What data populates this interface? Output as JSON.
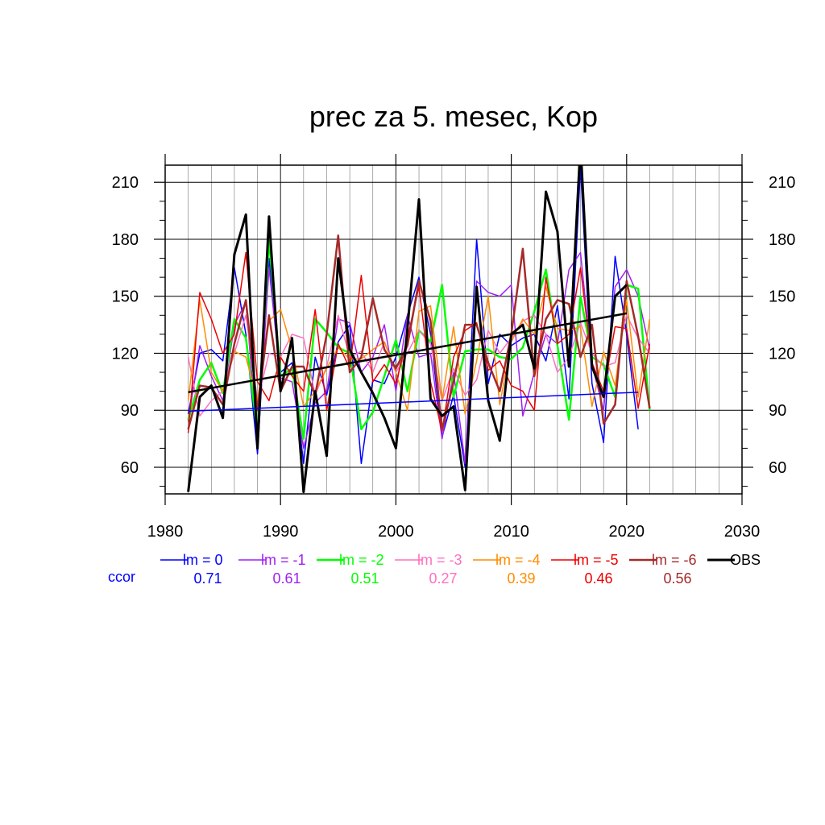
{
  "chart_data": {
    "type": "line",
    "title": "prec za 5. mesec, Kop",
    "xlabel": "",
    "ylabel": "",
    "xlim": [
      1980,
      2030
    ],
    "ylim": [
      46,
      219
    ],
    "x_ticks": [
      1980,
      1990,
      2000,
      2010,
      2020,
      2030
    ],
    "y_ticks": [
      60,
      90,
      120,
      150,
      180,
      210
    ],
    "grid": true,
    "legend_position": "bottom",
    "ccor_label": "ccor",
    "ccor_color": "#0000ff",
    "series": [
      {
        "name": "lm = 0",
        "color": "#0000ff",
        "width": 1.5,
        "ccor": "0.71",
        "x": [
          1982,
          1983,
          1984,
          1985,
          1986,
          1987,
          1988,
          1989,
          1990,
          1991,
          1992,
          1993,
          1994,
          1995,
          1996,
          1997,
          1998,
          1999,
          2000,
          2001,
          2002,
          2003,
          2004,
          2005,
          2006,
          2007,
          2008,
          2009,
          2010,
          2011,
          2012,
          2013,
          2014,
          2015,
          2016,
          2017,
          2018,
          2019,
          2020,
          2021
        ],
        "y": [
          88,
          120,
          122,
          116,
          165,
          130,
          67,
          170,
          110,
          115,
          62,
          118,
          98,
          126,
          135,
          62,
          106,
          104,
          118,
          140,
          160,
          130,
          76,
          98,
          60,
          180,
          104,
          130,
          124,
          128,
          130,
          116,
          145,
          96,
          218,
          104,
          73,
          171,
          130,
          80
        ]
      },
      {
        "name": "lm = -1",
        "color": "#a020f0",
        "width": 1.5,
        "ccor": "0.61",
        "x": [
          1982,
          1983,
          1984,
          1985,
          1986,
          1987,
          1988,
          1989,
          1990,
          1991,
          1992,
          1993,
          1994,
          1995,
          1996,
          1997,
          1998,
          1999,
          2000,
          2001,
          2002,
          2003,
          2004,
          2005,
          2006,
          2007,
          2008,
          2009,
          2010,
          2011,
          2012,
          2013,
          2014,
          2015,
          2016,
          2017,
          2018,
          2019,
          2020,
          2021,
          2022
        ],
        "y": [
          84,
          124,
          108,
          95,
          135,
          147,
          72,
          165,
          107,
          105,
          70,
          94,
          100,
          138,
          136,
          110,
          118,
          135,
          100,
          140,
          118,
          120,
          75,
          110,
          62,
          158,
          152,
          150,
          156,
          87,
          110,
          130,
          125,
          164,
          173,
          114,
          90,
          155,
          164,
          150,
          122
        ]
      },
      {
        "name": "lm = -2",
        "color": "#00ff00",
        "width": 2.5,
        "ccor": "0.51",
        "x": [
          1982,
          1983,
          1984,
          1985,
          1986,
          1987,
          1988,
          1989,
          1990,
          1991,
          1992,
          1993,
          1994,
          1995,
          1996,
          1997,
          1998,
          1999,
          2000,
          2001,
          2002,
          2003,
          2004,
          2005,
          2006,
          2007,
          2008,
          2009,
          2010,
          2011,
          2012,
          2013,
          2014,
          2015,
          2016,
          2017,
          2018,
          2019,
          2020,
          2021,
          2022
        ],
        "y": [
          85,
          106,
          115,
          99,
          138,
          128,
          78,
          180,
          108,
          112,
          75,
          138,
          131,
          123,
          120,
          80,
          89,
          108,
          127,
          100,
          132,
          126,
          156,
          97,
          121,
          122,
          122,
          118,
          117,
          123,
          142,
          164,
          124,
          85,
          150,
          118,
          114,
          97,
          156,
          154,
          90
        ]
      },
      {
        "name": "lm = -3",
        "color": "#ff70c0",
        "width": 1.5,
        "ccor": "0.27",
        "x": [
          1982,
          1983,
          1984,
          1985,
          1986,
          1987,
          1988,
          1989,
          1990,
          1991,
          1992,
          1993,
          1994,
          1995,
          1996,
          1997,
          1998,
          1999,
          2000,
          2001,
          2002,
          2003,
          2004,
          2005,
          2006,
          2007,
          2008,
          2009,
          2010,
          2011,
          2012,
          2013,
          2014,
          2015,
          2016,
          2017,
          2018,
          2019,
          2020,
          2021,
          2022
        ],
        "y": [
          118,
          87,
          95,
          100,
          120,
          140,
          95,
          120,
          118,
          130,
          128,
          98,
          113,
          140,
          118,
          121,
          110,
          126,
          110,
          120,
          132,
          125,
          95,
          112,
          98,
          106,
          132,
          120,
          128,
          137,
          140,
          130,
          110,
          118,
          136,
          120,
          113,
          115,
          140,
          128,
          120
        ]
      },
      {
        "name": "lm = -4",
        "color": "#ff8c00",
        "width": 1.5,
        "ccor": "0.39",
        "x": [
          1982,
          1983,
          1984,
          1985,
          1986,
          1987,
          1988,
          1989,
          1990,
          1991,
          1992,
          1993,
          1994,
          1995,
          1996,
          1997,
          1998,
          1999,
          2000,
          2001,
          2002,
          2003,
          2004,
          2005,
          2006,
          2007,
          2008,
          2009,
          2010,
          2011,
          2012,
          2013,
          2014,
          2015,
          2016,
          2017,
          2018,
          2019,
          2020,
          2021,
          2022
        ],
        "y": [
          95,
          148,
          110,
          100,
          121,
          118,
          95,
          137,
          143,
          122,
          92,
          100,
          112,
          123,
          117,
          117,
          122,
          126,
          110,
          90,
          142,
          145,
          95,
          134,
          88,
          116,
          150,
          93,
          126,
          138,
          130,
          155,
          133,
          132,
          134,
          92,
          121,
          103,
          148,
          97,
          138
        ]
      },
      {
        "name": "lm = -5",
        "color": "#ee0000",
        "width": 1.5,
        "ccor": "0.46",
        "x": [
          1982,
          1983,
          1984,
          1985,
          1986,
          1987,
          1988,
          1989,
          1990,
          1991,
          1992,
          1993,
          1994,
          1995,
          1996,
          1997,
          1998,
          1999,
          2000,
          2001,
          2002,
          2003,
          2004,
          2005,
          2006,
          2007,
          2008,
          2009,
          2010,
          2011,
          2012,
          2013,
          2014,
          2015,
          2016,
          2017,
          2018,
          2019,
          2020,
          2021,
          2022
        ],
        "y": [
          78,
          152,
          138,
          120,
          130,
          173,
          105,
          95,
          118,
          108,
          100,
          143,
          90,
          125,
          112,
          161,
          105,
          114,
          104,
          128,
          155,
          105,
          79,
          118,
          132,
          136,
          111,
          116,
          103,
          100,
          90,
          160,
          125,
          130,
          165,
          115,
          100,
          134,
          133,
          91,
          125
        ]
      },
      {
        "name": "lm = -6",
        "color": "#a52a2a",
        "width": 2.5,
        "ccor": "0.56",
        "x": [
          1982,
          1983,
          1984,
          1985,
          1986,
          1987,
          1988,
          1989,
          1990,
          1991,
          1992,
          1993,
          1994,
          1995,
          1996,
          1997,
          1998,
          1999,
          2000,
          2001,
          2002,
          2003,
          2004,
          2005,
          2006,
          2007,
          2008,
          2009,
          2010,
          2011,
          2012,
          2013,
          2014,
          2015,
          2016,
          2017,
          2018,
          2019,
          2020,
          2021,
          2022
        ],
        "y": [
          80,
          103,
          102,
          93,
          125,
          148,
          90,
          140,
          100,
          113,
          113,
          98,
          130,
          182,
          110,
          118,
          149,
          122,
          112,
          124,
          158,
          137,
          80,
          105,
          135,
          135,
          115,
          100,
          130,
          175,
          108,
          138,
          148,
          146,
          118,
          135,
          83,
          93,
          158,
          129,
          91
        ]
      },
      {
        "name": "OBS",
        "color": "#000000",
        "width": 3,
        "ccor": "",
        "x": [
          1982,
          1983,
          1984,
          1985,
          1986,
          1987,
          1988,
          1989,
          1990,
          1991,
          1992,
          1993,
          1994,
          1995,
          1996,
          1997,
          1998,
          1999,
          2000,
          2001,
          2002,
          2003,
          2004,
          2005,
          2006,
          2007,
          2008,
          2009,
          2010,
          2011,
          2012,
          2013,
          2014,
          2015,
          2016,
          2017,
          2018,
          2019,
          2020
        ],
        "y": [
          47,
          97,
          103,
          86,
          172,
          193,
          70,
          192,
          100,
          128,
          47,
          100,
          66,
          170,
          122,
          110,
          99,
          86,
          70,
          133,
          201,
          96,
          87,
          92,
          48,
          155,
          95,
          74,
          130,
          135,
          112,
          205,
          184,
          113,
          230,
          113,
          97,
          150,
          156
        ]
      }
    ],
    "trend_lines": [
      {
        "name": "OBS trend",
        "color": "#000000",
        "width": 2.5,
        "x": [
          1982,
          2020
        ],
        "y": [
          99.5,
          141
        ]
      },
      {
        "name": "lm = 0 trend",
        "color": "#0000ff",
        "width": 1.5,
        "x": [
          1982,
          2021
        ],
        "y": [
          89.5,
          99.5
        ]
      }
    ]
  }
}
